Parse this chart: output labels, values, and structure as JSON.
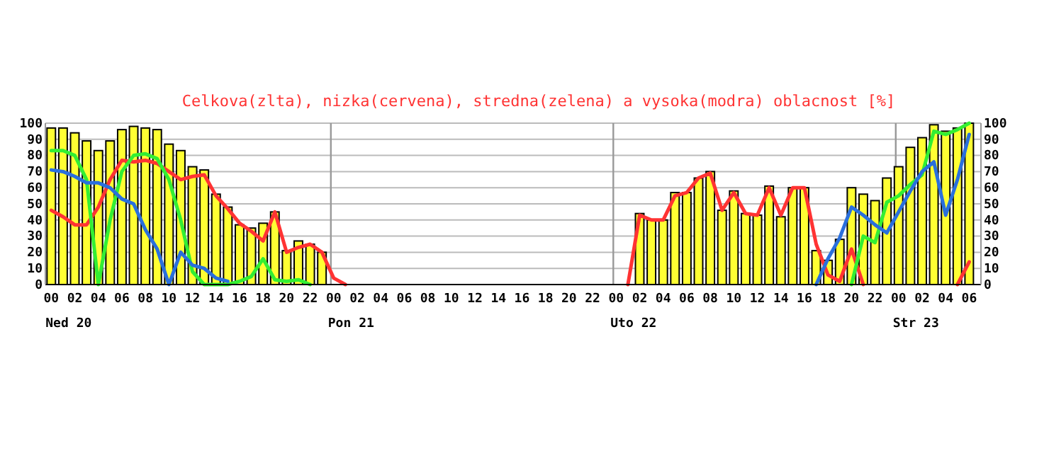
{
  "chart_data": {
    "type": "bar",
    "title": "Celkova(zlta), nizka(cervena), stredna(zelena) a vysoka(modra) oblacnost [%]",
    "x": [
      0,
      1,
      2,
      3,
      4,
      5,
      6,
      7,
      8,
      9,
      10,
      11,
      12,
      13,
      14,
      15,
      16,
      17,
      18,
      19,
      20,
      21,
      22,
      23,
      24,
      25,
      26,
      27,
      28,
      29,
      30,
      31,
      32,
      33,
      34,
      35,
      36,
      37,
      38,
      39,
      40,
      41,
      42,
      43,
      44,
      45,
      46,
      47,
      48,
      49,
      50,
      51,
      52,
      53,
      54,
      55,
      56,
      57,
      58,
      59,
      60,
      61,
      62,
      63,
      64,
      65,
      66,
      67,
      68,
      69,
      70,
      71,
      72,
      73,
      74,
      75,
      76,
      77,
      78
    ],
    "series": [
      {
        "color": "#ffff33",
        "values": [
          97,
          97,
          94,
          89,
          83,
          89,
          96,
          98,
          97,
          96,
          87,
          83,
          73,
          71,
          56,
          48,
          37,
          35,
          38,
          45,
          21,
          27,
          25,
          20,
          null,
          null,
          null,
          null,
          null,
          null,
          null,
          null,
          null,
          null,
          null,
          null,
          null,
          null,
          null,
          null,
          null,
          null,
          null,
          null,
          null,
          null,
          null,
          null,
          null,
          null,
          44,
          40,
          40,
          57,
          57,
          66,
          70,
          46,
          58,
          44,
          43,
          61,
          42,
          60,
          60,
          21,
          15,
          28,
          60,
          56,
          52,
          66,
          73,
          85,
          91,
          99,
          95,
          97,
          100
        ]
      },
      {
        "type": "line",
        "color": "#ff3333",
        "values": [
          46,
          42,
          37,
          37,
          48,
          65,
          77,
          76,
          77,
          75,
          70,
          65,
          67,
          68,
          55,
          47,
          38,
          33,
          27,
          45,
          20,
          23,
          25,
          20,
          4,
          0,
          null,
          null,
          null,
          null,
          null,
          null,
          null,
          null,
          null,
          null,
          null,
          null,
          null,
          null,
          null,
          null,
          null,
          null,
          null,
          null,
          null,
          null,
          null,
          0,
          43,
          40,
          40,
          55,
          57,
          66,
          69,
          46,
          57,
          44,
          43,
          60,
          43,
          60,
          60,
          25,
          6,
          2,
          22,
          0,
          null,
          null,
          null,
          null,
          null,
          null,
          null,
          0,
          14
        ]
      },
      {
        "type": "line",
        "color": "#33ee33",
        "values": [
          83,
          83,
          80,
          65,
          0,
          40,
          70,
          80,
          81,
          78,
          65,
          40,
          8,
          0,
          0,
          0,
          2,
          5,
          16,
          3,
          2,
          3,
          0,
          null,
          null,
          null,
          null,
          null,
          null,
          null,
          null,
          null,
          null,
          null,
          null,
          null,
          null,
          null,
          null,
          null,
          null,
          null,
          null,
          null,
          null,
          null,
          null,
          null,
          null,
          null,
          null,
          null,
          null,
          null,
          null,
          null,
          null,
          null,
          null,
          null,
          null,
          null,
          null,
          null,
          null,
          null,
          null,
          null,
          0,
          30,
          26,
          51,
          55,
          62,
          68,
          95,
          93,
          96,
          100
        ]
      },
      {
        "type": "line",
        "color": "#2a6fdc",
        "values": [
          71,
          70,
          67,
          63,
          63,
          60,
          53,
          50,
          34,
          22,
          0,
          20,
          12,
          10,
          4,
          2,
          null,
          null,
          null,
          null,
          null,
          null,
          null,
          null,
          null,
          null,
          null,
          null,
          null,
          null,
          null,
          null,
          null,
          null,
          null,
          null,
          null,
          null,
          null,
          null,
          null,
          null,
          null,
          null,
          null,
          null,
          null,
          null,
          null,
          null,
          null,
          null,
          null,
          null,
          null,
          null,
          null,
          null,
          null,
          null,
          null,
          null,
          null,
          null,
          null,
          0,
          16,
          29,
          48,
          43,
          37,
          32,
          45,
          58,
          70,
          76,
          43,
          65,
          93
        ]
      }
    ],
    "xlim": [
      -0.5,
      79
    ],
    "xticks": [
      {
        "value": 0,
        "label": "00"
      },
      {
        "value": 2,
        "label": "02"
      },
      {
        "value": 4,
        "label": "04"
      },
      {
        "value": 6,
        "label": "06"
      },
      {
        "value": 8,
        "label": "08"
      },
      {
        "value": 10,
        "label": "10"
      },
      {
        "value": 12,
        "label": "12"
      },
      {
        "value": 14,
        "label": "14"
      },
      {
        "value": 16,
        "label": "16"
      },
      {
        "value": 18,
        "label": "18"
      },
      {
        "value": 20,
        "label": "20"
      },
      {
        "value": 22,
        "label": "22"
      },
      {
        "value": 24,
        "label": "00"
      },
      {
        "value": 26,
        "label": "02"
      },
      {
        "value": 28,
        "label": "04"
      },
      {
        "value": 30,
        "label": "06"
      },
      {
        "value": 32,
        "label": "08"
      },
      {
        "value": 34,
        "label": "10"
      },
      {
        "value": 36,
        "label": "12"
      },
      {
        "value": 38,
        "label": "14"
      },
      {
        "value": 40,
        "label": "16"
      },
      {
        "value": 42,
        "label": "18"
      },
      {
        "value": 44,
        "label": "20"
      },
      {
        "value": 46,
        "label": "22"
      },
      {
        "value": 48,
        "label": "00"
      },
      {
        "value": 50,
        "label": "02"
      },
      {
        "value": 52,
        "label": "04"
      },
      {
        "value": 54,
        "label": "06"
      },
      {
        "value": 56,
        "label": "08"
      },
      {
        "value": 58,
        "label": "10"
      },
      {
        "value": 60,
        "label": "12"
      },
      {
        "value": 62,
        "label": "14"
      },
      {
        "value": 64,
        "label": "16"
      },
      {
        "value": 66,
        "label": "18"
      },
      {
        "value": 68,
        "label": "20"
      },
      {
        "value": 70,
        "label": "22"
      },
      {
        "value": 72,
        "label": "00"
      },
      {
        "value": 74,
        "label": "02"
      },
      {
        "value": 76,
        "label": "04"
      },
      {
        "value": 78,
        "label": "06"
      }
    ],
    "annotations": [
      "Ned 20",
      "Pon 21",
      "Uto 22",
      "Str 23"
    ],
    "ylim": [
      0,
      100
    ],
    "yticks": [
      0,
      10,
      20,
      30,
      40,
      50,
      60,
      70,
      80,
      90,
      100
    ],
    "y2lim": [
      0,
      100
    ],
    "y2ticks": [
      0,
      10,
      20,
      30,
      40,
      50,
      60,
      70,
      80,
      90,
      100
    ],
    "grid": "y",
    "ref_lines": [
      {
        "axis": "x",
        "value": 24,
        "color": "#999999"
      },
      {
        "axis": "x",
        "value": 48,
        "color": "#999999"
      },
      {
        "axis": "x",
        "value": 72,
        "color": "#999999"
      }
    ]
  }
}
